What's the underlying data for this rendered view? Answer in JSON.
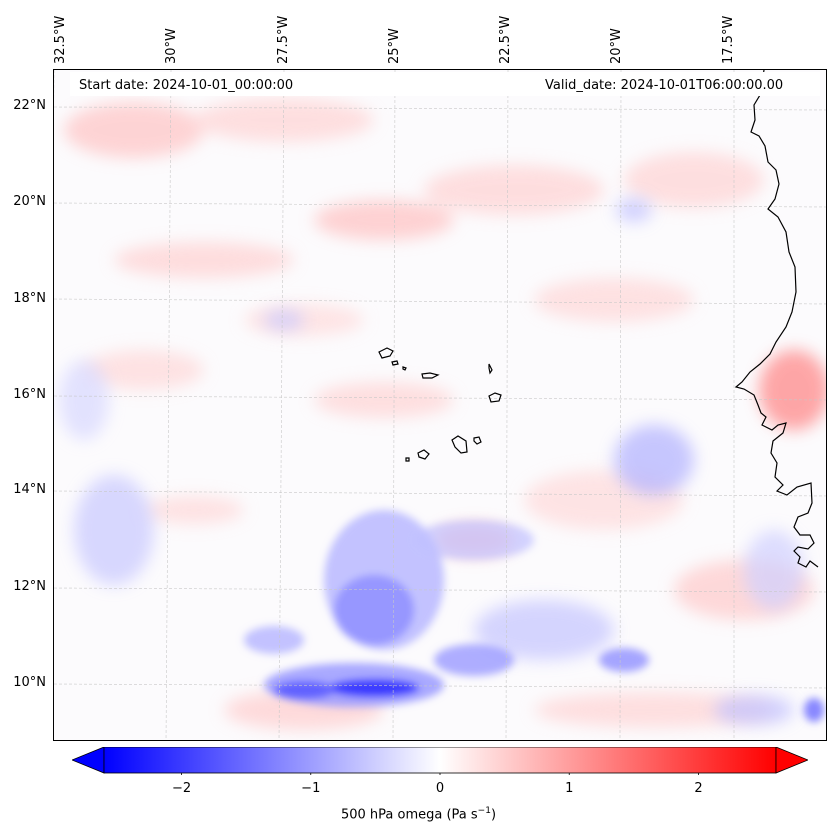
{
  "map": {
    "variable_label": "500 hPa omega (Pa s",
    "variable_unit_exp": "−1",
    "variable_unit_close": ")",
    "start_date": "Start date: 2024-10-01_00:00:00",
    "valid_date": "Valid_date: 2024-10-01T06:00:00.00",
    "longitude_labels": [
      "32.5°W",
      "30°W",
      "27.5°W",
      "25°W",
      "22.5°W",
      "20°W",
      "17.5°W"
    ],
    "latitude_labels": [
      "22°N",
      "20°N",
      "18°N",
      "16°N",
      "14°N",
      "12°N",
      "10°N"
    ],
    "colorbar_ticks": [
      "−2",
      "−1",
      "0",
      "1",
      "2"
    ],
    "colorbar_range": [
      -2.6,
      2.6
    ],
    "colormap": "bwr",
    "colors": {
      "negative": "#0000ff",
      "neutral": "#ffffff",
      "positive": "#ff0000",
      "coast": "#000000",
      "grid": "#bdbdbd"
    }
  }
}
